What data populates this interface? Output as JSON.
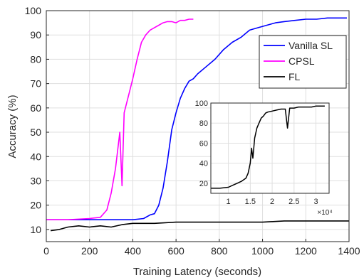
{
  "chart_data": {
    "type": "line",
    "xlabel": "Training Latency (seconds)",
    "ylabel": "Accuracy (%)",
    "xlim": [
      0,
      1400
    ],
    "ylim": [
      5,
      100
    ],
    "x_ticks": [
      0,
      200,
      400,
      600,
      800,
      1000,
      1200,
      1400
    ],
    "y_ticks": [
      10,
      20,
      30,
      40,
      50,
      60,
      70,
      80,
      90,
      100
    ],
    "grid": true,
    "legend_position": "top-right",
    "series": [
      {
        "name": "Vanilla SL",
        "color": "#0000ff",
        "x": [
          0,
          100,
          200,
          300,
          400,
          450,
          480,
          500,
          520,
          540,
          560,
          580,
          600,
          620,
          640,
          660,
          680,
          700,
          740,
          780,
          820,
          860,
          900,
          940,
          980,
          1020,
          1060,
          1100,
          1150,
          1200,
          1250,
          1300,
          1350,
          1390
        ],
        "y": [
          14,
          14,
          14,
          14,
          14,
          14.5,
          16,
          16.5,
          20,
          27,
          38,
          51,
          58,
          64,
          68,
          71,
          72,
          74,
          77,
          80,
          84,
          87,
          89,
          92,
          93,
          94,
          95,
          95.5,
          96,
          96.5,
          96.5,
          97,
          97,
          97
        ]
      },
      {
        "name": "CPSL",
        "color": "#ff00ff",
        "x": [
          0,
          100,
          200,
          250,
          280,
          300,
          320,
          340,
          350,
          360,
          380,
          400,
          420,
          440,
          460,
          480,
          500,
          520,
          540,
          560,
          580,
          600,
          620,
          640,
          660,
          680
        ],
        "y": [
          14,
          14,
          14.5,
          15,
          18,
          25,
          35,
          50,
          28,
          58,
          65,
          72,
          80,
          87,
          90,
          92,
          93,
          94,
          95,
          95.5,
          95.5,
          95,
          96,
          96,
          96.5,
          96.5
        ]
      },
      {
        "name": "FL",
        "color": "#000000",
        "x": [
          20,
          60,
          100,
          150,
          200,
          250,
          300,
          350,
          400,
          500,
          600,
          700,
          800,
          900,
          1000,
          1100,
          1200,
          1300,
          1400
        ],
        "y": [
          9.5,
          10,
          11,
          11.5,
          11,
          11.5,
          11,
          12,
          12.5,
          12.5,
          13,
          13,
          13,
          13,
          13,
          13.5,
          13.5,
          13.5,
          13.5
        ]
      }
    ],
    "inset": {
      "xlim": [
        6000,
        33000
      ],
      "ylim": [
        10,
        100
      ],
      "x_ticks": [
        10000,
        15000,
        20000,
        25000,
        30000
      ],
      "x_tick_labels": [
        "1",
        "1.5",
        "2",
        "2.5",
        "3"
      ],
      "y_ticks": [
        20,
        40,
        60,
        80,
        100
      ],
      "x_exponent": "×10⁴",
      "series": {
        "color": "#000000",
        "x": [
          6000,
          8000,
          10000,
          11000,
          12000,
          13000,
          14000,
          14500,
          15000,
          15300,
          15600,
          16000,
          16500,
          17000,
          17500,
          18000,
          18500,
          19000,
          20000,
          21000,
          22000,
          23000,
          23500,
          24000,
          24500,
          25000,
          26000,
          27000,
          28000,
          29000,
          30000,
          31000,
          32000
        ],
        "y": [
          15,
          15,
          16,
          18,
          20,
          22,
          25,
          30,
          40,
          55,
          45,
          65,
          75,
          80,
          85,
          87,
          90,
          91,
          92,
          93,
          94,
          94,
          75,
          95,
          95,
          95,
          96,
          96,
          96,
          96,
          97,
          97,
          97
        ]
      }
    }
  }
}
